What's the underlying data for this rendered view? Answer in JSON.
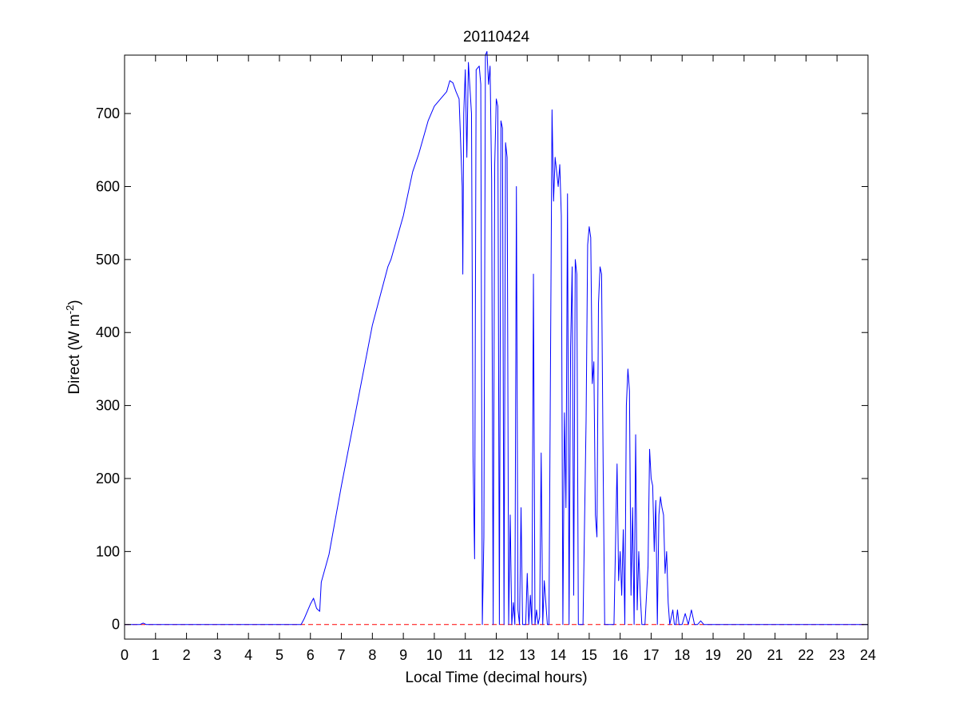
{
  "chart_data": {
    "type": "line",
    "title": "20110424",
    "xlabel": "Local Time (decimal hours)",
    "ylabel": {
      "prefix": "Direct (W m",
      "superscript": "-2",
      "suffix": ")"
    },
    "xlim": [
      0,
      24
    ],
    "ylim": [
      -20,
      780
    ],
    "xticks": [
      0,
      1,
      2,
      3,
      4,
      5,
      6,
      7,
      8,
      9,
      10,
      11,
      12,
      13,
      14,
      15,
      16,
      17,
      18,
      19,
      20,
      21,
      22,
      23,
      24
    ],
    "yticks": [
      0,
      100,
      200,
      300,
      400,
      500,
      600,
      700
    ],
    "grid": false,
    "colors": {
      "direct": "#0000ff",
      "zero_line": "#ff0000",
      "axes": "#000000"
    },
    "series": [
      {
        "line_style": "solid",
        "points": [
          [
            0,
            0
          ],
          [
            0.5,
            0
          ],
          [
            0.6,
            2
          ],
          [
            0.7,
            0
          ],
          [
            5.7,
            0
          ],
          [
            5.8,
            8
          ],
          [
            6.0,
            28
          ],
          [
            6.1,
            36
          ],
          [
            6.2,
            22
          ],
          [
            6.3,
            18
          ],
          [
            6.35,
            58
          ],
          [
            6.6,
            96
          ],
          [
            7.0,
            190
          ],
          [
            7.5,
            300
          ],
          [
            8.0,
            410
          ],
          [
            8.5,
            490
          ],
          [
            8.6,
            500
          ],
          [
            9.0,
            560
          ],
          [
            9.3,
            620
          ],
          [
            9.5,
            645
          ],
          [
            9.8,
            690
          ],
          [
            10.0,
            710
          ],
          [
            10.2,
            720
          ],
          [
            10.4,
            730
          ],
          [
            10.5,
            745
          ],
          [
            10.6,
            742
          ],
          [
            10.7,
            730
          ],
          [
            10.8,
            720
          ],
          [
            10.9,
            600
          ],
          [
            10.92,
            480
          ],
          [
            10.95,
            700
          ],
          [
            11.0,
            760
          ],
          [
            11.05,
            640
          ],
          [
            11.1,
            770
          ],
          [
            11.2,
            700
          ],
          [
            11.25,
            230
          ],
          [
            11.3,
            90
          ],
          [
            11.35,
            760
          ],
          [
            11.45,
            765
          ],
          [
            11.5,
            740
          ],
          [
            11.55,
            0
          ],
          [
            11.6,
            120
          ],
          [
            11.65,
            780
          ],
          [
            11.7,
            785
          ],
          [
            11.75,
            740
          ],
          [
            11.8,
            765
          ],
          [
            11.85,
            610
          ],
          [
            11.9,
            0
          ],
          [
            11.95,
            630
          ],
          [
            12.0,
            720
          ],
          [
            12.05,
            710
          ],
          [
            12.1,
            0
          ],
          [
            12.15,
            690
          ],
          [
            12.2,
            680
          ],
          [
            12.25,
            0
          ],
          [
            12.3,
            660
          ],
          [
            12.35,
            640
          ],
          [
            12.4,
            0
          ],
          [
            12.45,
            150
          ],
          [
            12.5,
            0
          ],
          [
            12.55,
            30
          ],
          [
            12.6,
            0
          ],
          [
            12.65,
            600
          ],
          [
            12.7,
            20
          ],
          [
            12.75,
            0
          ],
          [
            12.8,
            160
          ],
          [
            12.85,
            0
          ],
          [
            12.9,
            0
          ],
          [
            12.95,
            0
          ],
          [
            13.0,
            70
          ],
          [
            13.05,
            0
          ],
          [
            13.1,
            40
          ],
          [
            13.15,
            0
          ],
          [
            13.2,
            480
          ],
          [
            13.25,
            0
          ],
          [
            13.3,
            20
          ],
          [
            13.35,
            0
          ],
          [
            13.4,
            10
          ],
          [
            13.45,
            235
          ],
          [
            13.5,
            0
          ],
          [
            13.55,
            60
          ],
          [
            13.6,
            30
          ],
          [
            13.65,
            0
          ],
          [
            13.7,
            0
          ],
          [
            13.8,
            705
          ],
          [
            13.85,
            580
          ],
          [
            13.9,
            640
          ],
          [
            14.0,
            600
          ],
          [
            14.05,
            630
          ],
          [
            14.1,
            560
          ],
          [
            14.15,
            0
          ],
          [
            14.2,
            290
          ],
          [
            14.25,
            160
          ],
          [
            14.3,
            590
          ],
          [
            14.35,
            0
          ],
          [
            14.4,
            380
          ],
          [
            14.45,
            490
          ],
          [
            14.5,
            40
          ],
          [
            14.55,
            500
          ],
          [
            14.6,
            480
          ],
          [
            14.65,
            0
          ],
          [
            14.7,
            0
          ],
          [
            14.75,
            0
          ],
          [
            14.8,
            0
          ],
          [
            14.9,
            280
          ],
          [
            14.95,
            520
          ],
          [
            15.0,
            545
          ],
          [
            15.05,
            530
          ],
          [
            15.1,
            330
          ],
          [
            15.15,
            360
          ],
          [
            15.2,
            150
          ],
          [
            15.25,
            120
          ],
          [
            15.3,
            440
          ],
          [
            15.35,
            490
          ],
          [
            15.4,
            480
          ],
          [
            15.45,
            220
          ],
          [
            15.5,
            0
          ],
          [
            15.55,
            0
          ],
          [
            15.6,
            0
          ],
          [
            15.7,
            0
          ],
          [
            15.8,
            0
          ],
          [
            15.9,
            220
          ],
          [
            15.95,
            60
          ],
          [
            16.0,
            100
          ],
          [
            16.05,
            40
          ],
          [
            16.1,
            130
          ],
          [
            16.15,
            0
          ],
          [
            16.2,
            300
          ],
          [
            16.25,
            350
          ],
          [
            16.3,
            320
          ],
          [
            16.35,
            40
          ],
          [
            16.4,
            160
          ],
          [
            16.45,
            0
          ],
          [
            16.5,
            260
          ],
          [
            16.55,
            20
          ],
          [
            16.6,
            100
          ],
          [
            16.65,
            40
          ],
          [
            16.7,
            0
          ],
          [
            16.8,
            0
          ],
          [
            16.9,
            80
          ],
          [
            16.95,
            240
          ],
          [
            17.0,
            200
          ],
          [
            17.05,
            190
          ],
          [
            17.1,
            100
          ],
          [
            17.15,
            170
          ],
          [
            17.2,
            0
          ],
          [
            17.25,
            150
          ],
          [
            17.3,
            175
          ],
          [
            17.35,
            160
          ],
          [
            17.4,
            150
          ],
          [
            17.45,
            70
          ],
          [
            17.5,
            100
          ],
          [
            17.55,
            30
          ],
          [
            17.6,
            0
          ],
          [
            17.7,
            20
          ],
          [
            17.75,
            0
          ],
          [
            17.8,
            0
          ],
          [
            17.85,
            20
          ],
          [
            17.9,
            0
          ],
          [
            18.0,
            0
          ],
          [
            18.1,
            15
          ],
          [
            18.2,
            0
          ],
          [
            18.3,
            20
          ],
          [
            18.4,
            0
          ],
          [
            18.5,
            0
          ],
          [
            18.6,
            5
          ],
          [
            18.7,
            0
          ],
          [
            24,
            0
          ]
        ]
      },
      {
        "line_style": "dashed",
        "points": [
          [
            0,
            0
          ],
          [
            24,
            0
          ]
        ]
      }
    ]
  }
}
